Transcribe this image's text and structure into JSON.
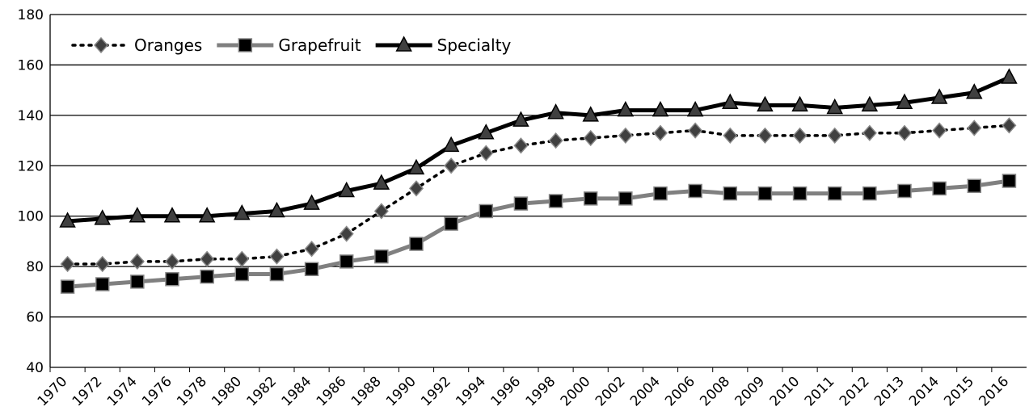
{
  "chart_data": {
    "type": "line",
    "categories": [
      "1970",
      "1972",
      "1974",
      "1976",
      "1978",
      "1980",
      "1982",
      "1984",
      "1986",
      "1988",
      "1990",
      "1992",
      "1994",
      "1996",
      "1998",
      "2000",
      "2002",
      "2004",
      "2006",
      "2008",
      "2009",
      "2010",
      "2011",
      "2012",
      "2013",
      "2014",
      "2015",
      "2016"
    ],
    "series": [
      {
        "name": "Oranges",
        "color": "#000000",
        "values": [
          81,
          81,
          82,
          82,
          83,
          83,
          84,
          87,
          93,
          102,
          111,
          120,
          125,
          128,
          130,
          131,
          132,
          133,
          134,
          132,
          132,
          132,
          132,
          133,
          133,
          134,
          135,
          136
        ]
      },
      {
        "name": "Grapefruit",
        "color": "#808080",
        "values": [
          72,
          73,
          74,
          75,
          76,
          77,
          77,
          79,
          82,
          84,
          89,
          97,
          102,
          105,
          106,
          107,
          107,
          109,
          110,
          109,
          109,
          109,
          109,
          109,
          110,
          111,
          112,
          114
        ]
      },
      {
        "name": "Specialty",
        "color": "#000000",
        "values": [
          98,
          99,
          100,
          100,
          100,
          101,
          102,
          105,
          110,
          113,
          119,
          128,
          133,
          138,
          141,
          140,
          142,
          142,
          142,
          145,
          144,
          144,
          143,
          144,
          145,
          147,
          149,
          155
        ]
      }
    ],
    "ylim": [
      40,
      180
    ],
    "yticks": [
      40,
      60,
      80,
      100,
      120,
      140,
      160,
      180
    ],
    "grid": true,
    "legend": "top-left"
  }
}
